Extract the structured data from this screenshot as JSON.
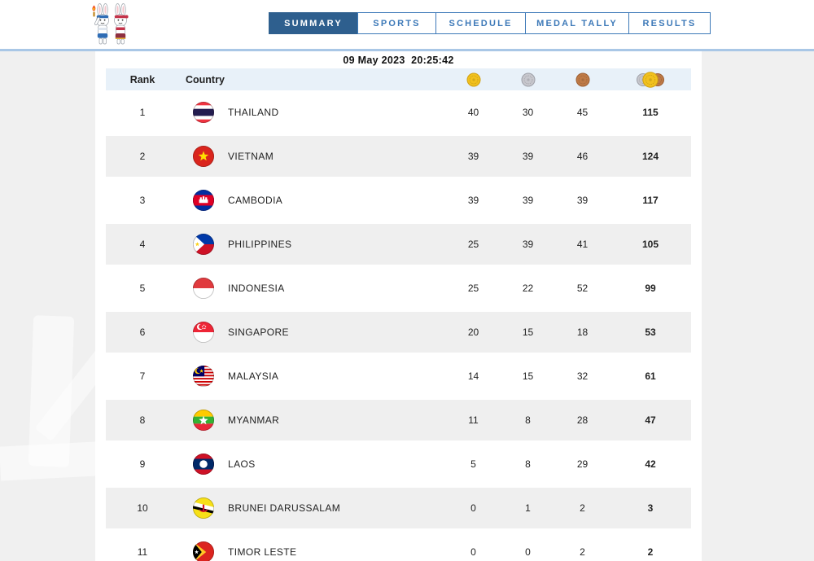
{
  "page": {
    "background_color": "#f0f0f0",
    "topbar_color": "#ffffff",
    "divider_color": "#a9c7e6"
  },
  "brand": {
    "logo": "sea-games-2023-rabbit-mascots"
  },
  "nav": {
    "active_bg": "#2e5f8e",
    "inactive_color": "#3d79b8",
    "tabs": [
      {
        "id": "summary",
        "label": "SUMMARY",
        "active": true
      },
      {
        "id": "sports",
        "label": "SPORTS",
        "active": false
      },
      {
        "id": "schedule",
        "label": "SCHEDULE",
        "active": false
      },
      {
        "id": "medal-tally",
        "label": "MEDAL TALLY",
        "active": false
      },
      {
        "id": "results",
        "label": "RESULTS",
        "active": false
      }
    ]
  },
  "medal_table": {
    "timestamp": "09 May 2023  20:25:42",
    "headers": {
      "rank": "Rank",
      "country": "Country"
    },
    "medal_columns": [
      {
        "icon": "gold-medal-icon",
        "kind": "gold"
      },
      {
        "icon": "silver-medal-icon",
        "kind": "silver"
      },
      {
        "icon": "bronze-medal-icon",
        "kind": "bronze"
      },
      {
        "icon": "total-medals-icon",
        "kind": "total"
      }
    ],
    "medal_colors": {
      "gold": "#f2c11d",
      "silver": "#c7c7cd",
      "bronze": "#bf7a46"
    },
    "rows": [
      {
        "rank": "1",
        "country": "THAILAND",
        "flag": "thailand",
        "gold": "40",
        "silver": "30",
        "bronze": "45",
        "total": "115"
      },
      {
        "rank": "2",
        "country": "VIETNAM",
        "flag": "vietnam",
        "gold": "39",
        "silver": "39",
        "bronze": "46",
        "total": "124"
      },
      {
        "rank": "3",
        "country": "CAMBODIA",
        "flag": "cambodia",
        "gold": "39",
        "silver": "39",
        "bronze": "39",
        "total": "117"
      },
      {
        "rank": "4",
        "country": "PHILIPPINES",
        "flag": "philippines",
        "gold": "25",
        "silver": "39",
        "bronze": "41",
        "total": "105"
      },
      {
        "rank": "5",
        "country": "INDONESIA",
        "flag": "indonesia",
        "gold": "25",
        "silver": "22",
        "bronze": "52",
        "total": "99"
      },
      {
        "rank": "6",
        "country": "SINGAPORE",
        "flag": "singapore",
        "gold": "20",
        "silver": "15",
        "bronze": "18",
        "total": "53"
      },
      {
        "rank": "7",
        "country": "MALAYSIA",
        "flag": "malaysia",
        "gold": "14",
        "silver": "15",
        "bronze": "32",
        "total": "61"
      },
      {
        "rank": "8",
        "country": "MYANMAR",
        "flag": "myanmar",
        "gold": "11",
        "silver": "8",
        "bronze": "28",
        "total": "47"
      },
      {
        "rank": "9",
        "country": "LAOS",
        "flag": "laos",
        "gold": "5",
        "silver": "8",
        "bronze": "29",
        "total": "42"
      },
      {
        "rank": "10",
        "country": "BRUNEI DARUSSALAM",
        "flag": "brunei",
        "gold": "0",
        "silver": "1",
        "bronze": "2",
        "total": "3"
      },
      {
        "rank": "11",
        "country": "TIMOR LESTE",
        "flag": "timor",
        "gold": "0",
        "silver": "0",
        "bronze": "2",
        "total": "2"
      }
    ]
  }
}
